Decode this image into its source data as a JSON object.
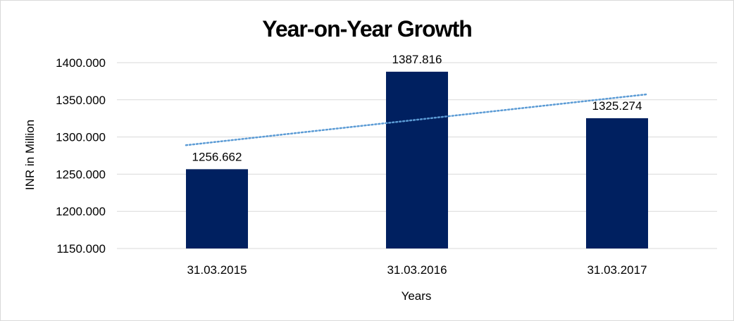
{
  "chart_data": {
    "type": "bar",
    "title": "Year-on-Year Growth",
    "xlabel": "Years",
    "ylabel": "INR in Million",
    "categories": [
      "31.03.2015",
      "31.03.2016",
      "31.03.2017"
    ],
    "values": [
      1256.662,
      1387.816,
      1325.274
    ],
    "data_labels": [
      "1256.662",
      "1387.816",
      "1325.274"
    ],
    "ylim": [
      1150,
      1400
    ],
    "yticks": [
      1150,
      1200,
      1250,
      1300,
      1350,
      1400
    ],
    "ytick_labels": [
      "1150.000",
      "1200.000",
      "1250.000",
      "1300.000",
      "1350.000",
      "1400.000"
    ],
    "grid": true,
    "legend": "none",
    "trendline": {
      "type": "linear",
      "style": "dotted"
    },
    "colors": {
      "bar": "#002060",
      "trendline": "#5B9BD5",
      "grid": "#d9d9d9"
    }
  }
}
